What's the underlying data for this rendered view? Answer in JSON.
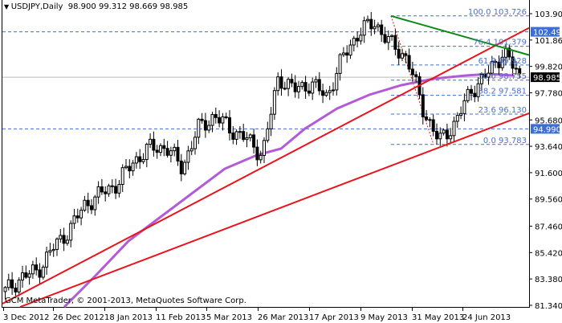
{
  "header": {
    "symbol_label": "USDJPY,Daily",
    "ohlc": "98.900 99.312 98.669 98.985",
    "menu_icon": "triangle-down-icon"
  },
  "watermark": "GCM MetaTrader, © 2001-2013, MetaQuotes Software Corp.",
  "price_axis": {
    "ticks": [
      "103.900",
      "101.860",
      "99.820",
      "97.780",
      "95.680",
      "93.640",
      "91.600",
      "89.560",
      "87.460",
      "85.420",
      "83.380",
      "81.340"
    ],
    "markers": [
      {
        "label": "102.496",
        "bg": "#3b6fd6",
        "fg": "#ffffff",
        "price": 102.496
      },
      {
        "label": "98.985",
        "bg": "#000000",
        "fg": "#ffffff",
        "price": 98.985
      },
      {
        "label": "94.990",
        "bg": "#3b6fd6",
        "fg": "#ffffff",
        "price": 94.99
      }
    ]
  },
  "time_axis": {
    "ticks": [
      "3 Dec 2012",
      "26 Dec 2012",
      "18 Jan 2013",
      "11 Feb 2013",
      "5 Mar 2013",
      "26 Mar 2013",
      "17 Apr 2013",
      "9 May 2013",
      "31 May 2013",
      "24 Jun 2013"
    ]
  },
  "fibonacci": {
    "levels": [
      {
        "label": "100.0 103.726",
        "price": 103.726
      },
      {
        "label": "76.4 101.379",
        "price": 101.379
      },
      {
        "label": "61.8 99.928",
        "price": 99.928
      },
      {
        "label": "50.0 98.755",
        "price": 98.755
      },
      {
        "label": "38.2 97.581",
        "price": 97.581
      },
      {
        "label": "23.6 96.130",
        "price": 96.13
      },
      {
        "label": "0.0 93.783",
        "price": 93.783
      }
    ],
    "color": "#3b6fd6"
  },
  "colors": {
    "trendline_red": "#e8141b",
    "trendline_green": "#0a8a12",
    "moving_average": "#b35ad6",
    "grid_dash": "#3b6fd6",
    "bid_line": "#b9b9b9"
  },
  "chart_data": {
    "type": "candlestick",
    "title": "USDJPY,Daily",
    "symbol": "USDJPY",
    "timeframe": "Daily",
    "last_ohlc": {
      "open": 98.9,
      "high": 99.312,
      "low": 98.669,
      "close": 98.985
    },
    "x_ticks": [
      "3 Dec 2012",
      "26 Dec 2012",
      "18 Jan 2013",
      "11 Feb 2013",
      "5 Mar 2013",
      "26 Mar 2013",
      "17 Apr 2013",
      "9 May 2013",
      "31 May 2013",
      "24 Jun 2013"
    ],
    "y_ticks": [
      103.9,
      101.86,
      99.82,
      97.78,
      95.68,
      93.64,
      91.6,
      89.56,
      87.46,
      85.42,
      83.38,
      81.34
    ],
    "ylim": [
      81.34,
      104.9
    ],
    "horizontal_lines": [
      102.496,
      98.985,
      94.99
    ],
    "fibonacci_retracement": {
      "high": 103.726,
      "low": 93.783,
      "levels": {
        "100.0": 103.726,
        "76.4": 101.379,
        "61.8": 99.928,
        "50.0": 98.755,
        "38.2": 97.581,
        "23.6": 96.13,
        "0.0": 93.783
      }
    },
    "trendlines": [
      {
        "name": "upper support (red)",
        "from_date": "3 Dec 2012",
        "from_price": 81.9,
        "to_date": "end",
        "to_price": 102.8
      },
      {
        "name": "lower support (red)",
        "from_date": "10 Dec 2012",
        "from_price": 81.3,
        "to_date": "end",
        "to_price": 96.2
      },
      {
        "name": "resistance (green)",
        "from_date": "22 May 2013",
        "from_price": 103.73,
        "to_date": "end",
        "to_price": 100.6
      }
    ],
    "moving_average": {
      "color": "purple",
      "approx_path": [
        [
          "26 Dec 2012",
          81.3
        ],
        [
          "11 Feb 2013",
          88.7
        ],
        [
          "26 Mar 2013",
          92.8
        ],
        [
          "17 Apr 2013",
          95.3
        ],
        [
          "9 May 2013",
          97.7
        ],
        [
          "31 May 2013",
          98.7
        ],
        [
          "24 Jun 2013",
          98.9
        ]
      ]
    },
    "approx_closes": [
      [
        "3 Dec 2012",
        82.4
      ],
      [
        "10 Dec 2012",
        83.5
      ],
      [
        "17 Dec 2012",
        84.0
      ],
      [
        "26 Dec 2012",
        85.8
      ],
      [
        "4 Jan 2013",
        87.2
      ],
      [
        "11 Jan 2013",
        89.2
      ],
      [
        "18 Jan 2013",
        90.0
      ],
      [
        "25 Jan 2013",
        90.8
      ],
      [
        "1 Feb 2013",
        92.5
      ],
      [
        "11 Feb 2013",
        93.5
      ],
      [
        "18 Feb 2013",
        93.6
      ],
      [
        "25 Feb 2013",
        92.0
      ],
      [
        "5 Mar 2013",
        95.0
      ],
      [
        "12 Mar 2013",
        96.0
      ],
      [
        "19 Mar 2013",
        95.0
      ],
      [
        "26 Mar 2013",
        94.2
      ],
      [
        "1 Apr 2013",
        93.0
      ],
      [
        "8 Apr 2013",
        99.0
      ],
      [
        "17 Apr 2013",
        98.0
      ],
      [
        "24 Apr 2013",
        98.5
      ],
      [
        "1 May 2013",
        97.5
      ],
      [
        "9 May 2013",
        100.5
      ],
      [
        "16 May 2013",
        102.5
      ],
      [
        "22 May 2013",
        103.2
      ],
      [
        "28 May 2013",
        101.5
      ],
      [
        "31 May 2013",
        100.5
      ],
      [
        "6 Jun 2013",
        96.5
      ],
      [
        "13 Jun 2013",
        94.0
      ],
      [
        "18 Jun 2013",
        95.5
      ],
      [
        "24 Jun 2013",
        98.0
      ],
      [
        "28 Jun 2013",
        99.2
      ],
      [
        "5 Jul 2013",
        101.0
      ],
      [
        "10 Jul 2013",
        98.985
      ]
    ]
  }
}
